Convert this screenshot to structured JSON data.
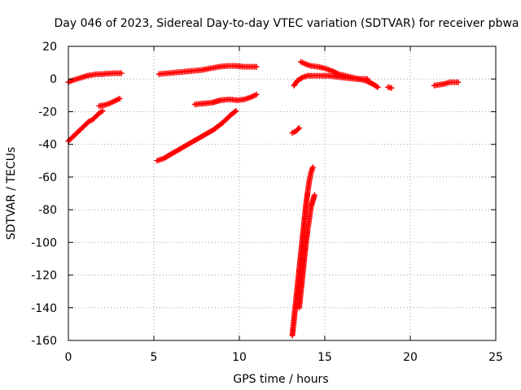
{
  "chart_data": {
    "type": "scatter",
    "title": "Day 046 of 2023, Sidereal Day-to-day VTEC variation (SDTVAR) for receiver pbwa",
    "xlabel": "GPS time / hours",
    "ylabel": "SDTVAR / TECUs",
    "xlim": [
      0,
      25
    ],
    "ylim": [
      -160,
      20
    ],
    "xticks": [
      0,
      5,
      10,
      15,
      20,
      25
    ],
    "yticks": [
      -160,
      -140,
      -120,
      -100,
      -80,
      -60,
      -40,
      -20,
      0,
      20
    ],
    "grid": true,
    "marker": "plus",
    "color": "#ff0000",
    "series": [
      {
        "points": [
          [
            0.0,
            -2
          ],
          [
            0.2,
            -1
          ],
          [
            0.5,
            0
          ],
          [
            0.8,
            1
          ],
          [
            1.1,
            2
          ],
          [
            1.4,
            2.5
          ],
          [
            1.7,
            3
          ],
          [
            2.0,
            3
          ],
          [
            2.3,
            3.3
          ],
          [
            2.6,
            3.5
          ],
          [
            2.9,
            3.5
          ],
          [
            3.1,
            3.5
          ]
        ]
      },
      {
        "points": [
          [
            0.0,
            -38
          ],
          [
            0.2,
            -36
          ],
          [
            0.4,
            -34
          ],
          [
            0.6,
            -32
          ],
          [
            0.8,
            -30
          ],
          [
            1.0,
            -28
          ],
          [
            1.2,
            -26
          ],
          [
            1.4,
            -25
          ],
          [
            1.6,
            -23
          ],
          [
            1.8,
            -21
          ],
          [
            2.0,
            -19.5
          ]
        ]
      },
      {
        "points": [
          [
            1.8,
            -16.5
          ],
          [
            2.1,
            -16
          ],
          [
            2.4,
            -15
          ],
          [
            2.7,
            -13.5
          ],
          [
            3.0,
            -12
          ]
        ]
      },
      {
        "points": [
          [
            5.3,
            3
          ],
          [
            5.8,
            3.5
          ],
          [
            6.3,
            4
          ],
          [
            6.8,
            4.5
          ],
          [
            7.3,
            5
          ],
          [
            7.8,
            5.5
          ],
          [
            8.3,
            6.5
          ],
          [
            8.8,
            7.5
          ],
          [
            9.3,
            8
          ],
          [
            9.8,
            8
          ],
          [
            10.3,
            7.5
          ],
          [
            10.8,
            7.5
          ],
          [
            11.0,
            7.5
          ]
        ]
      },
      {
        "points": [
          [
            5.2,
            -50
          ],
          [
            5.6,
            -48.5
          ],
          [
            6.0,
            -46
          ],
          [
            6.5,
            -43
          ],
          [
            7.0,
            -40
          ],
          [
            7.5,
            -37
          ],
          [
            8.0,
            -34
          ],
          [
            8.5,
            -31
          ],
          [
            9.0,
            -27
          ],
          [
            9.5,
            -22
          ],
          [
            9.8,
            -19.5
          ]
        ]
      },
      {
        "points": [
          [
            7.4,
            -15.5
          ],
          [
            7.9,
            -15
          ],
          [
            8.4,
            -14.5
          ],
          [
            8.9,
            -13
          ],
          [
            9.4,
            -12.5
          ],
          [
            9.9,
            -13
          ],
          [
            10.3,
            -12.5
          ],
          [
            10.7,
            -11
          ],
          [
            11.0,
            -9.5
          ]
        ]
      },
      {
        "points": [
          [
            13.1,
            -33
          ],
          [
            13.3,
            -32
          ],
          [
            13.5,
            -30
          ]
        ]
      },
      {
        "points": [
          [
            13.1,
            -157
          ],
          [
            13.2,
            -147
          ],
          [
            13.3,
            -137
          ],
          [
            13.4,
            -127
          ],
          [
            13.5,
            -117
          ],
          [
            13.6,
            -107
          ],
          [
            13.7,
            -97
          ],
          [
            13.8,
            -87
          ],
          [
            13.9,
            -77
          ],
          [
            14.0,
            -69
          ],
          [
            14.1,
            -62
          ],
          [
            14.2,
            -57
          ],
          [
            14.3,
            -54
          ]
        ]
      },
      {
        "points": [
          [
            13.5,
            -140
          ],
          [
            13.6,
            -130
          ],
          [
            13.7,
            -120
          ],
          [
            13.8,
            -110
          ],
          [
            13.9,
            -100
          ],
          [
            14.0,
            -92
          ],
          [
            14.1,
            -85
          ],
          [
            14.2,
            -78
          ],
          [
            14.4,
            -71
          ]
        ]
      },
      {
        "points": [
          [
            13.6,
            10.5
          ],
          [
            13.9,
            9
          ],
          [
            14.2,
            8
          ],
          [
            14.6,
            7.5
          ],
          [
            15.0,
            6.5
          ],
          [
            15.4,
            5
          ],
          [
            15.8,
            3
          ],
          [
            16.2,
            2
          ],
          [
            16.6,
            1
          ],
          [
            17.0,
            0
          ],
          [
            17.4,
            -1
          ],
          [
            17.8,
            -3
          ],
          [
            18.1,
            -5
          ]
        ]
      },
      {
        "points": [
          [
            13.2,
            -4
          ],
          [
            13.4,
            -1
          ],
          [
            13.7,
            1
          ],
          [
            14.0,
            2
          ],
          [
            14.4,
            2
          ],
          [
            14.8,
            2
          ],
          [
            15.2,
            2
          ],
          [
            15.6,
            1.5
          ],
          [
            16.0,
            1
          ],
          [
            16.4,
            0.5
          ],
          [
            16.8,
            0
          ],
          [
            17.2,
            0
          ],
          [
            17.5,
            0
          ]
        ]
      },
      {
        "points": [
          [
            18.7,
            -5
          ],
          [
            18.9,
            -5.5
          ]
        ]
      },
      {
        "points": [
          [
            21.4,
            -4
          ],
          [
            21.7,
            -3.5
          ],
          [
            22.0,
            -3
          ],
          [
            22.3,
            -2
          ],
          [
            22.6,
            -2
          ],
          [
            22.8,
            -2
          ]
        ]
      }
    ]
  }
}
